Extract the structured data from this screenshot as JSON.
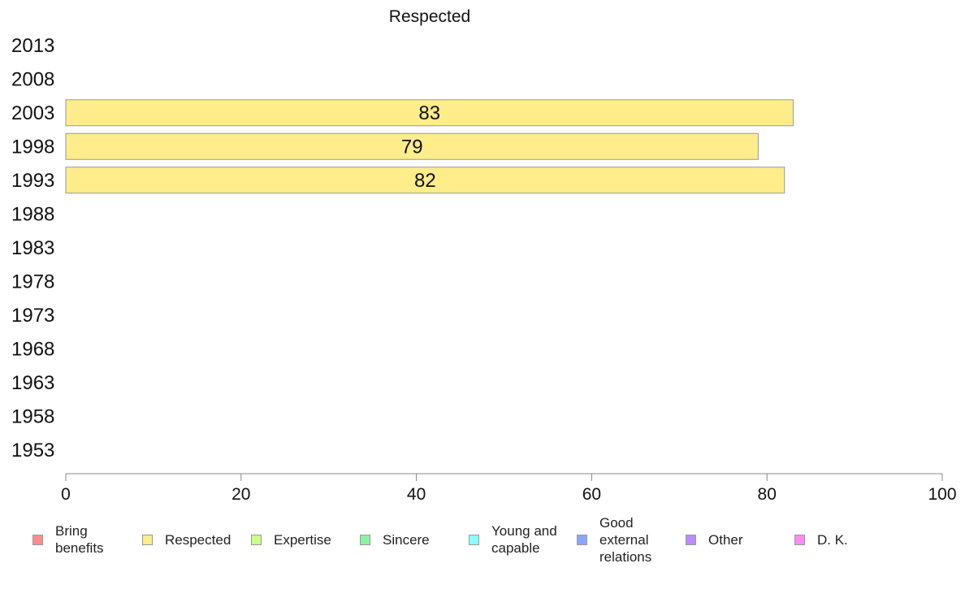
{
  "chart_data": {
    "type": "bar",
    "orientation": "horizontal",
    "title": "Respected",
    "categories": [
      "2013",
      "2008",
      "2003",
      "1998",
      "1993",
      "1988",
      "1983",
      "1978",
      "1973",
      "1968",
      "1963",
      "1958",
      "1953"
    ],
    "series": [
      {
        "name": "Respected",
        "color": "#FFEC8B",
        "values": [
          null,
          null,
          83,
          79,
          82,
          null,
          null,
          null,
          null,
          null,
          null,
          null,
          null
        ]
      }
    ],
    "xlim": [
      0,
      100
    ],
    "xticks": [
      "0",
      "20",
      "40",
      "60",
      "80",
      "100"
    ],
    "grid": false,
    "legend_position": "bottom"
  },
  "legend": [
    {
      "label": "Bring benefits",
      "color": "#FF8C8C"
    },
    {
      "label": "Respected",
      "color": "#FFEC8B"
    },
    {
      "label": "Expertise",
      "color": "#CCFF8C"
    },
    {
      "label": "Sincere",
      "color": "#8CF2A6"
    },
    {
      "label": "Young and capable",
      "color": "#8CFFFF"
    },
    {
      "label": "Good external relations",
      "color": "#8CA6FF"
    },
    {
      "label": "Other",
      "color": "#B98CFF"
    },
    {
      "label": "D. K.",
      "color": "#FF8CF2"
    }
  ]
}
